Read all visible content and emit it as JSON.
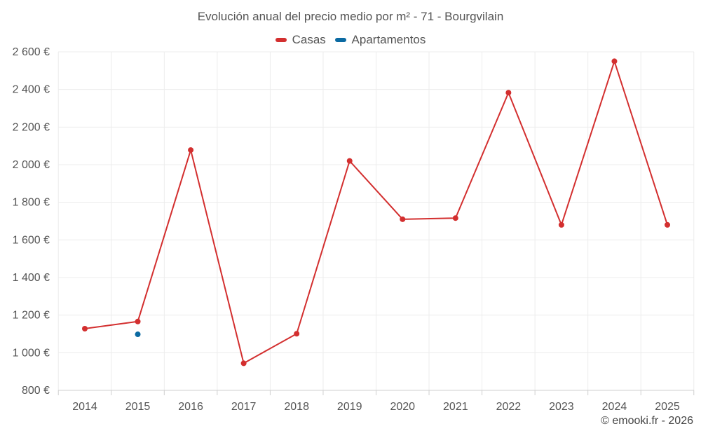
{
  "chart_data": {
    "type": "line",
    "title": "Evolución anual del precio medio por m² - 71 - Bourgvilain",
    "categories": [
      "2014",
      "2015",
      "2016",
      "2017",
      "2018",
      "2019",
      "2020",
      "2021",
      "2022",
      "2023",
      "2024",
      "2025"
    ],
    "series": [
      {
        "name": "Casas",
        "color": "#d32f2f",
        "values": [
          1128,
          1166,
          2078,
          944,
          1101,
          2020,
          1710,
          1716,
          2383,
          1680,
          2550,
          1680
        ]
      },
      {
        "name": "Apartamentos",
        "color": "#0b6aa2",
        "values": [
          null,
          1098,
          null,
          null,
          null,
          null,
          null,
          null,
          null,
          null,
          null,
          null
        ]
      }
    ],
    "ylim": [
      800,
      2600
    ],
    "yticks": [
      800,
      1000,
      1200,
      1400,
      1600,
      1800,
      2000,
      2200,
      2400,
      2600
    ],
    "ytick_labels": [
      "800 €",
      "1 000 €",
      "1 200 €",
      "1 400 €",
      "1 600 €",
      "1 800 €",
      "2 000 €",
      "2 200 €",
      "2 400 €",
      "2 600 €"
    ],
    "grid": true,
    "legend_position": "top-center"
  },
  "footer": {
    "credit": "© emooki.fr - 2026"
  }
}
